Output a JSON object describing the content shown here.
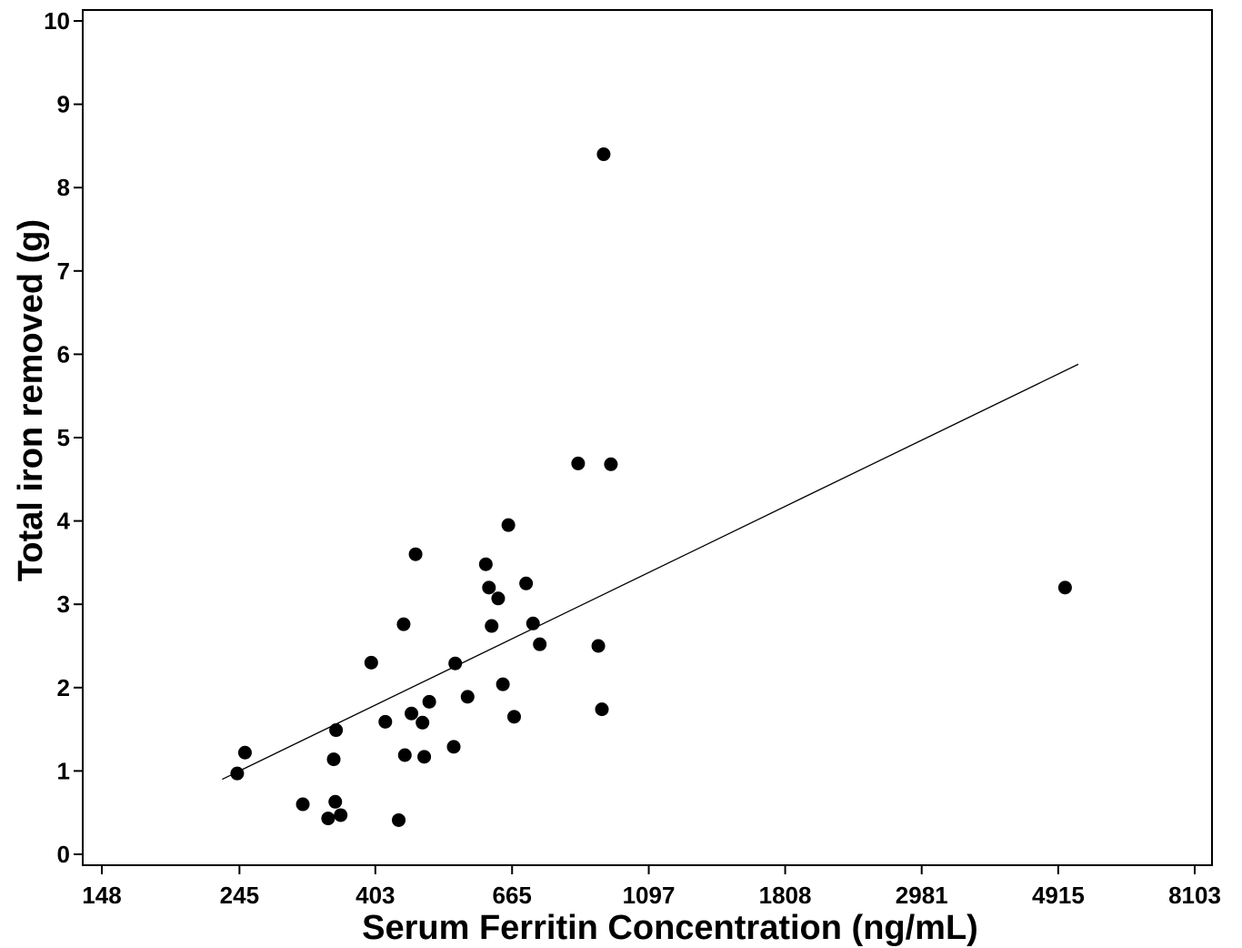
{
  "chart_data": {
    "type": "scatter",
    "title": "",
    "xlabel": "Serum Ferritin Concentration (ng/mL)",
    "ylabel": "Total iron removed (g)",
    "x_scale": "log",
    "xlim": [
      148,
      8103
    ],
    "ylim": [
      0,
      10
    ],
    "x_ticks": [
      148,
      245,
      403,
      665,
      1097,
      1808,
      2981,
      4915,
      8103
    ],
    "y_ticks": [
      0,
      1,
      2,
      3,
      4,
      5,
      6,
      7,
      8,
      9,
      10
    ],
    "grid": false,
    "legend": "none",
    "marker_color": "#000000",
    "points": [
      {
        "x": 243,
        "y": 0.97
      },
      {
        "x": 250,
        "y": 1.22
      },
      {
        "x": 309,
        "y": 0.6
      },
      {
        "x": 339,
        "y": 0.43
      },
      {
        "x": 346,
        "y": 1.14
      },
      {
        "x": 349,
        "y": 1.49
      },
      {
        "x": 348,
        "y": 0.63
      },
      {
        "x": 355,
        "y": 0.47
      },
      {
        "x": 397,
        "y": 2.3
      },
      {
        "x": 418,
        "y": 1.59
      },
      {
        "x": 439,
        "y": 0.41
      },
      {
        "x": 447,
        "y": 2.76
      },
      {
        "x": 449,
        "y": 1.19
      },
      {
        "x": 460,
        "y": 1.69
      },
      {
        "x": 467,
        "y": 3.6
      },
      {
        "x": 479,
        "y": 1.58
      },
      {
        "x": 482,
        "y": 1.17
      },
      {
        "x": 491,
        "y": 1.83
      },
      {
        "x": 537,
        "y": 1.29
      },
      {
        "x": 540,
        "y": 2.29
      },
      {
        "x": 565,
        "y": 1.89
      },
      {
        "x": 604,
        "y": 3.48
      },
      {
        "x": 611,
        "y": 3.2
      },
      {
        "x": 617,
        "y": 2.74
      },
      {
        "x": 632,
        "y": 3.07
      },
      {
        "x": 643,
        "y": 2.04
      },
      {
        "x": 656,
        "y": 3.95
      },
      {
        "x": 670,
        "y": 1.65
      },
      {
        "x": 700,
        "y": 3.25
      },
      {
        "x": 718,
        "y": 2.77
      },
      {
        "x": 736,
        "y": 2.52
      },
      {
        "x": 847,
        "y": 4.69
      },
      {
        "x": 912,
        "y": 2.5
      },
      {
        "x": 924,
        "y": 1.74
      },
      {
        "x": 930,
        "y": 8.4
      },
      {
        "x": 955,
        "y": 4.68
      },
      {
        "x": 5040,
        "y": 3.2
      }
    ],
    "fit_line": {
      "x": [
        230,
        5290
      ],
      "y": [
        0.9,
        5.88
      ]
    }
  }
}
